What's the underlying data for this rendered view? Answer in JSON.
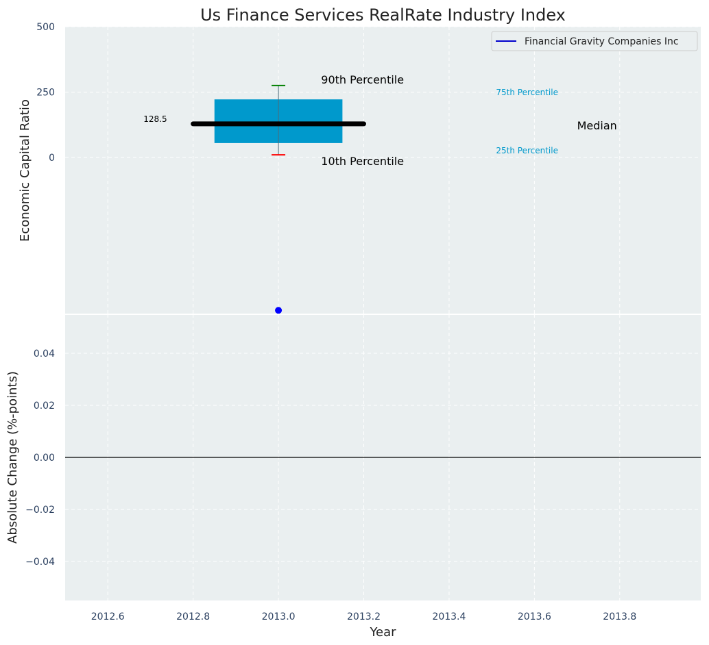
{
  "chart_data": [
    {
      "type": "box",
      "title": "Us Finance Services RealRate Industry Index",
      "xlabel": "",
      "ylabel": "Economic Capital Ratio",
      "ylim": [
        -600,
        500
      ],
      "xlim": [
        2012.5,
        2013.99
      ],
      "yticks": [
        500,
        250,
        0
      ],
      "grid": true,
      "legend": {
        "placement": "top-right",
        "entries": [
          {
            "label": "Financial Gravity Companies Inc",
            "color": "#0000cc"
          }
        ]
      },
      "box": {
        "x": 2013.0,
        "p10": 10,
        "p25": 55,
        "median": 128.5,
        "p75": 222,
        "p90": 275,
        "box_color": "#0099cc",
        "median_color": "#000000",
        "p90_color": "#008000",
        "p10_color": "#ff0000"
      },
      "company_point": {
        "x": 2013.0,
        "y": -585,
        "color": "#0000ff"
      },
      "annotations": {
        "median_value": "128.5",
        "p90": "90th Percentile",
        "p10": "10th Percentile",
        "p75": "75th Percentile",
        "p25": "25th Percentile",
        "median": "Median"
      }
    },
    {
      "type": "line",
      "xlabel": "Year",
      "ylabel": "Absolute Change (%-points)",
      "xlim": [
        2012.5,
        2013.99
      ],
      "ylim": [
        -0.055,
        0.055
      ],
      "xticks": [
        2012.6,
        2012.8,
        2013.0,
        2013.2,
        2013.4,
        2013.6,
        2013.8
      ],
      "xtick_labels": [
        "2012.6",
        "2012.8",
        "2013.0",
        "2013.2",
        "2013.4",
        "2013.6",
        "2013.8"
      ],
      "yticks": [
        0.04,
        0.02,
        0.0,
        -0.02,
        -0.04
      ],
      "ytick_labels": [
        "0.04",
        "0.02",
        "0.00",
        "−0.02",
        "−0.04"
      ],
      "zero_line": true,
      "grid": true
    }
  ]
}
